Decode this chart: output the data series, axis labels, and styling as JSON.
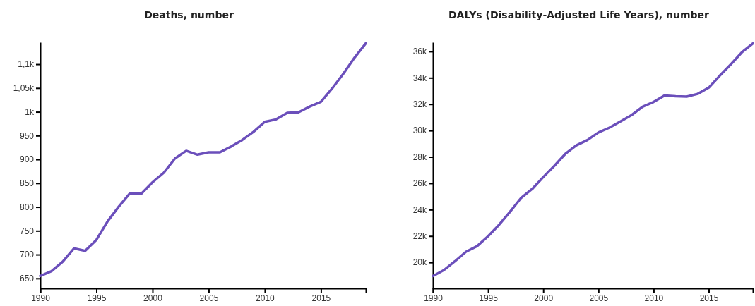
{
  "chart_data": [
    {
      "type": "line",
      "title": "Deaths, number",
      "x": [
        1990,
        1991,
        1992,
        1993,
        1994,
        1995,
        1996,
        1997,
        1998,
        1999,
        2000,
        2001,
        2002,
        2003,
        2004,
        2005,
        2006,
        2007,
        2008,
        2009,
        2010,
        2011,
        2012,
        2013,
        2014,
        2015,
        2016,
        2017,
        2018,
        2019
      ],
      "series": [
        {
          "color": "#6b4fbb",
          "values": [
            655,
            665,
            685,
            713,
            708,
            731,
            770,
            801,
            829,
            828,
            852,
            872,
            902,
            918,
            910,
            915,
            915,
            927,
            941,
            958,
            979,
            984,
            998,
            999,
            1011,
            1021,
            1049,
            1080,
            1114,
            1144
          ]
        }
      ],
      "xlim": [
        1990,
        2019
      ],
      "xticks": [
        1990,
        1995,
        2000,
        2005,
        2010,
        2015
      ],
      "ylim": [
        629,
        1146
      ],
      "yticks": [
        650,
        700,
        750,
        800,
        850,
        900,
        950,
        {
          "value": 1000,
          "label": "1k"
        },
        {
          "value": 1050,
          "label": "1,05k"
        },
        {
          "value": 1100,
          "label": "1,1k"
        }
      ],
      "grid": false,
      "marker": "none",
      "line_style": "solid"
    },
    {
      "type": "line",
      "title": "DALYs (Disability-Adjusted Life Years), number",
      "x": [
        1990,
        1991,
        1992,
        1993,
        1994,
        1995,
        1996,
        1997,
        1998,
        1999,
        2000,
        2001,
        2002,
        2003,
        2004,
        2005,
        2006,
        2007,
        2008,
        2009,
        2010,
        2011,
        2012,
        2013,
        2014,
        2015,
        2016,
        2017,
        2018,
        2019
      ],
      "series": [
        {
          "color": "#6b4fbb",
          "values": [
            18970,
            19420,
            20090,
            20810,
            21230,
            21990,
            22860,
            23850,
            24900,
            25570,
            26470,
            27320,
            28230,
            28880,
            29280,
            29850,
            30220,
            30690,
            31170,
            31810,
            32170,
            32660,
            32600,
            32570,
            32780,
            33250,
            34160,
            35020,
            35930,
            36600
          ]
        }
      ],
      "xlim": [
        1990,
        2019
      ],
      "xticks": [
        1990,
        1995,
        2000,
        2005,
        2010,
        2015
      ],
      "ylim": [
        18030,
        36690
      ],
      "yticks": [
        {
          "value": 20000,
          "label": "20k"
        },
        {
          "value": 22000,
          "label": "22k"
        },
        {
          "value": 24000,
          "label": "24k"
        },
        {
          "value": 26000,
          "label": "26k"
        },
        {
          "value": 28000,
          "label": "28k"
        },
        {
          "value": 30000,
          "label": "30k"
        },
        {
          "value": 32000,
          "label": "32k"
        },
        {
          "value": 34000,
          "label": "34k"
        },
        {
          "value": 36000,
          "label": "36k"
        }
      ],
      "grid": false,
      "marker": "none",
      "line_style": "solid"
    }
  ]
}
